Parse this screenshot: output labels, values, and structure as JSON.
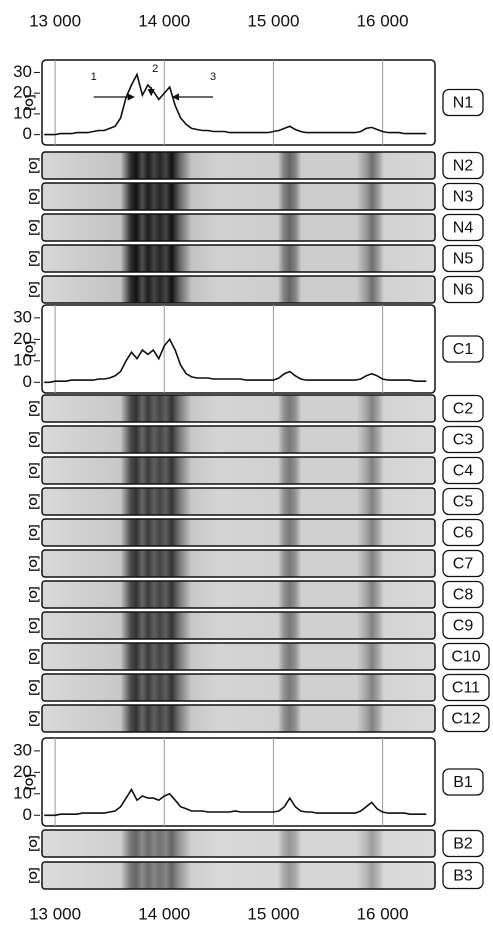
{
  "chart_data": {
    "type": "multi-panel",
    "xlim": [
      12880,
      16480
    ],
    "xticks": [
      {
        "value": 13000,
        "label": "13 000"
      },
      {
        "value": 14000,
        "label": "14 000"
      },
      {
        "value": 15000,
        "label": "15 000"
      },
      {
        "value": 16000,
        "label": "16 000"
      }
    ],
    "x": [
      12900,
      12950,
      13000,
      13050,
      13100,
      13150,
      13200,
      13250,
      13300,
      13350,
      13400,
      13450,
      13500,
      13550,
      13600,
      13650,
      13700,
      13750,
      13800,
      13850,
      13900,
      13950,
      14000,
      14050,
      14100,
      14150,
      14200,
      14250,
      14300,
      14350,
      14400,
      14450,
      14500,
      14550,
      14600,
      14650,
      14700,
      14750,
      14800,
      14850,
      14900,
      14950,
      15000,
      15050,
      15100,
      15150,
      15200,
      15250,
      15300,
      15350,
      15400,
      15450,
      15500,
      15550,
      15600,
      15650,
      15700,
      15750,
      15800,
      15850,
      15900,
      15950,
      16000,
      16050,
      16100,
      16150,
      16200,
      16250,
      16300,
      16350,
      16400
    ],
    "panels": [
      {
        "type": "line",
        "label": "N1",
        "ylabel": "[O]",
        "ylim": [
          -5,
          36
        ],
        "yticks": [
          0,
          10,
          20,
          30
        ],
        "color": "#111111",
        "values": [
          0,
          0,
          0,
          0.5,
          0.5,
          0.5,
          1,
          1,
          1,
          1.5,
          2,
          2,
          3,
          4,
          8,
          18,
          24,
          29,
          19,
          24,
          21,
          17,
          20,
          23,
          14,
          8,
          5,
          3,
          2.5,
          2,
          2,
          1.5,
          1.5,
          1.5,
          1,
          1,
          1,
          1,
          1,
          1,
          1,
          1,
          1.5,
          2,
          3,
          4,
          2.5,
          1.5,
          1,
          1,
          1,
          1,
          1,
          1,
          1,
          1,
          1,
          1,
          1.5,
          3,
          3.5,
          2.5,
          1.5,
          1,
          1,
          1,
          0.5,
          0.5,
          0.5,
          0.5,
          0.5
        ],
        "annotations": [
          {
            "text": "1",
            "x": 13720
          },
          {
            "text": "2",
            "x": 13880
          },
          {
            "text": "3",
            "x": 14080
          }
        ]
      },
      {
        "type": "gel",
        "label": "N2",
        "ylabel": "[O]",
        "color": "#111111"
      },
      {
        "type": "gel",
        "label": "N3",
        "ylabel": "[O]",
        "color": "#111111"
      },
      {
        "type": "gel",
        "label": "N4",
        "ylabel": "[O]",
        "color": "#111111"
      },
      {
        "type": "gel",
        "label": "N5",
        "ylabel": "[O]",
        "color": "#111111"
      },
      {
        "type": "gel",
        "label": "N6",
        "ylabel": "[O]",
        "color": "#111111"
      },
      {
        "type": "line",
        "label": "C1",
        "ylabel": "[O]",
        "ylim": [
          -5,
          36
        ],
        "yticks": [
          0,
          10,
          20,
          30
        ],
        "color": "#111111",
        "values": [
          0,
          0,
          0.5,
          0.5,
          0.5,
          1,
          1,
          1,
          1,
          1,
          1.5,
          1.5,
          2,
          3,
          5,
          10,
          14,
          11,
          15,
          13,
          15,
          11,
          17,
          20,
          15,
          8,
          4,
          2.5,
          2,
          2,
          2,
          1.5,
          1.5,
          1.5,
          1.5,
          1.5,
          1.5,
          1,
          1,
          1,
          1,
          1,
          1,
          2,
          4,
          5,
          3,
          1.5,
          1,
          1,
          1,
          1,
          1,
          1,
          1,
          1,
          1,
          1,
          1.5,
          3,
          4,
          3,
          1.5,
          1,
          1,
          1,
          1,
          1,
          0.5,
          0.5,
          0.5
        ]
      },
      {
        "type": "gel",
        "label": "C2",
        "ylabel": "[O]",
        "color": "#333333"
      },
      {
        "type": "gel",
        "label": "C3",
        "ylabel": "[O]",
        "color": "#333333"
      },
      {
        "type": "gel",
        "label": "C4",
        "ylabel": "[O]",
        "color": "#333333"
      },
      {
        "type": "gel",
        "label": "C5",
        "ylabel": "[O]",
        "color": "#333333"
      },
      {
        "type": "gel",
        "label": "C6",
        "ylabel": "[O]",
        "color": "#333333"
      },
      {
        "type": "gel",
        "label": "C7",
        "ylabel": "[O]",
        "color": "#333333"
      },
      {
        "type": "gel",
        "label": "C8",
        "ylabel": "[O]",
        "color": "#333333"
      },
      {
        "type": "gel",
        "label": "C9",
        "ylabel": "[O]",
        "color": "#333333"
      },
      {
        "type": "gel",
        "label": "C10",
        "ylabel": "[O]",
        "color": "#333333"
      },
      {
        "type": "gel",
        "label": "C11",
        "ylabel": "[O]",
        "color": "#333333"
      },
      {
        "type": "gel",
        "label": "C12",
        "ylabel": "[O]",
        "color": "#333333"
      },
      {
        "type": "line",
        "label": "B1",
        "ylabel": "[O]",
        "ylim": [
          -5,
          36
        ],
        "yticks": [
          0,
          10,
          20,
          30
        ],
        "color": "#111111",
        "values": [
          0,
          0,
          0,
          0.5,
          0.5,
          0.5,
          0.5,
          1,
          1,
          1,
          1,
          1,
          1.5,
          2,
          4,
          8,
          12,
          7,
          9,
          8,
          8,
          7,
          9,
          10,
          7,
          4,
          3,
          2,
          2,
          2,
          1.5,
          1.5,
          1.5,
          1.5,
          1.5,
          2,
          1.5,
          1.5,
          1.5,
          1.5,
          1.5,
          1.5,
          1.5,
          2,
          4,
          8,
          4,
          2,
          1.5,
          1.5,
          1,
          1,
          1,
          1,
          1,
          1,
          1,
          1,
          2,
          4,
          6,
          3,
          1.5,
          1,
          1,
          1,
          1,
          0.5,
          0.5,
          0.5,
          0.5
        ]
      },
      {
        "type": "gel",
        "label": "B2",
        "ylabel": "[O]",
        "color": "#666666"
      },
      {
        "type": "gel",
        "label": "B3",
        "ylabel": "[O]",
        "color": "#666666"
      }
    ]
  }
}
